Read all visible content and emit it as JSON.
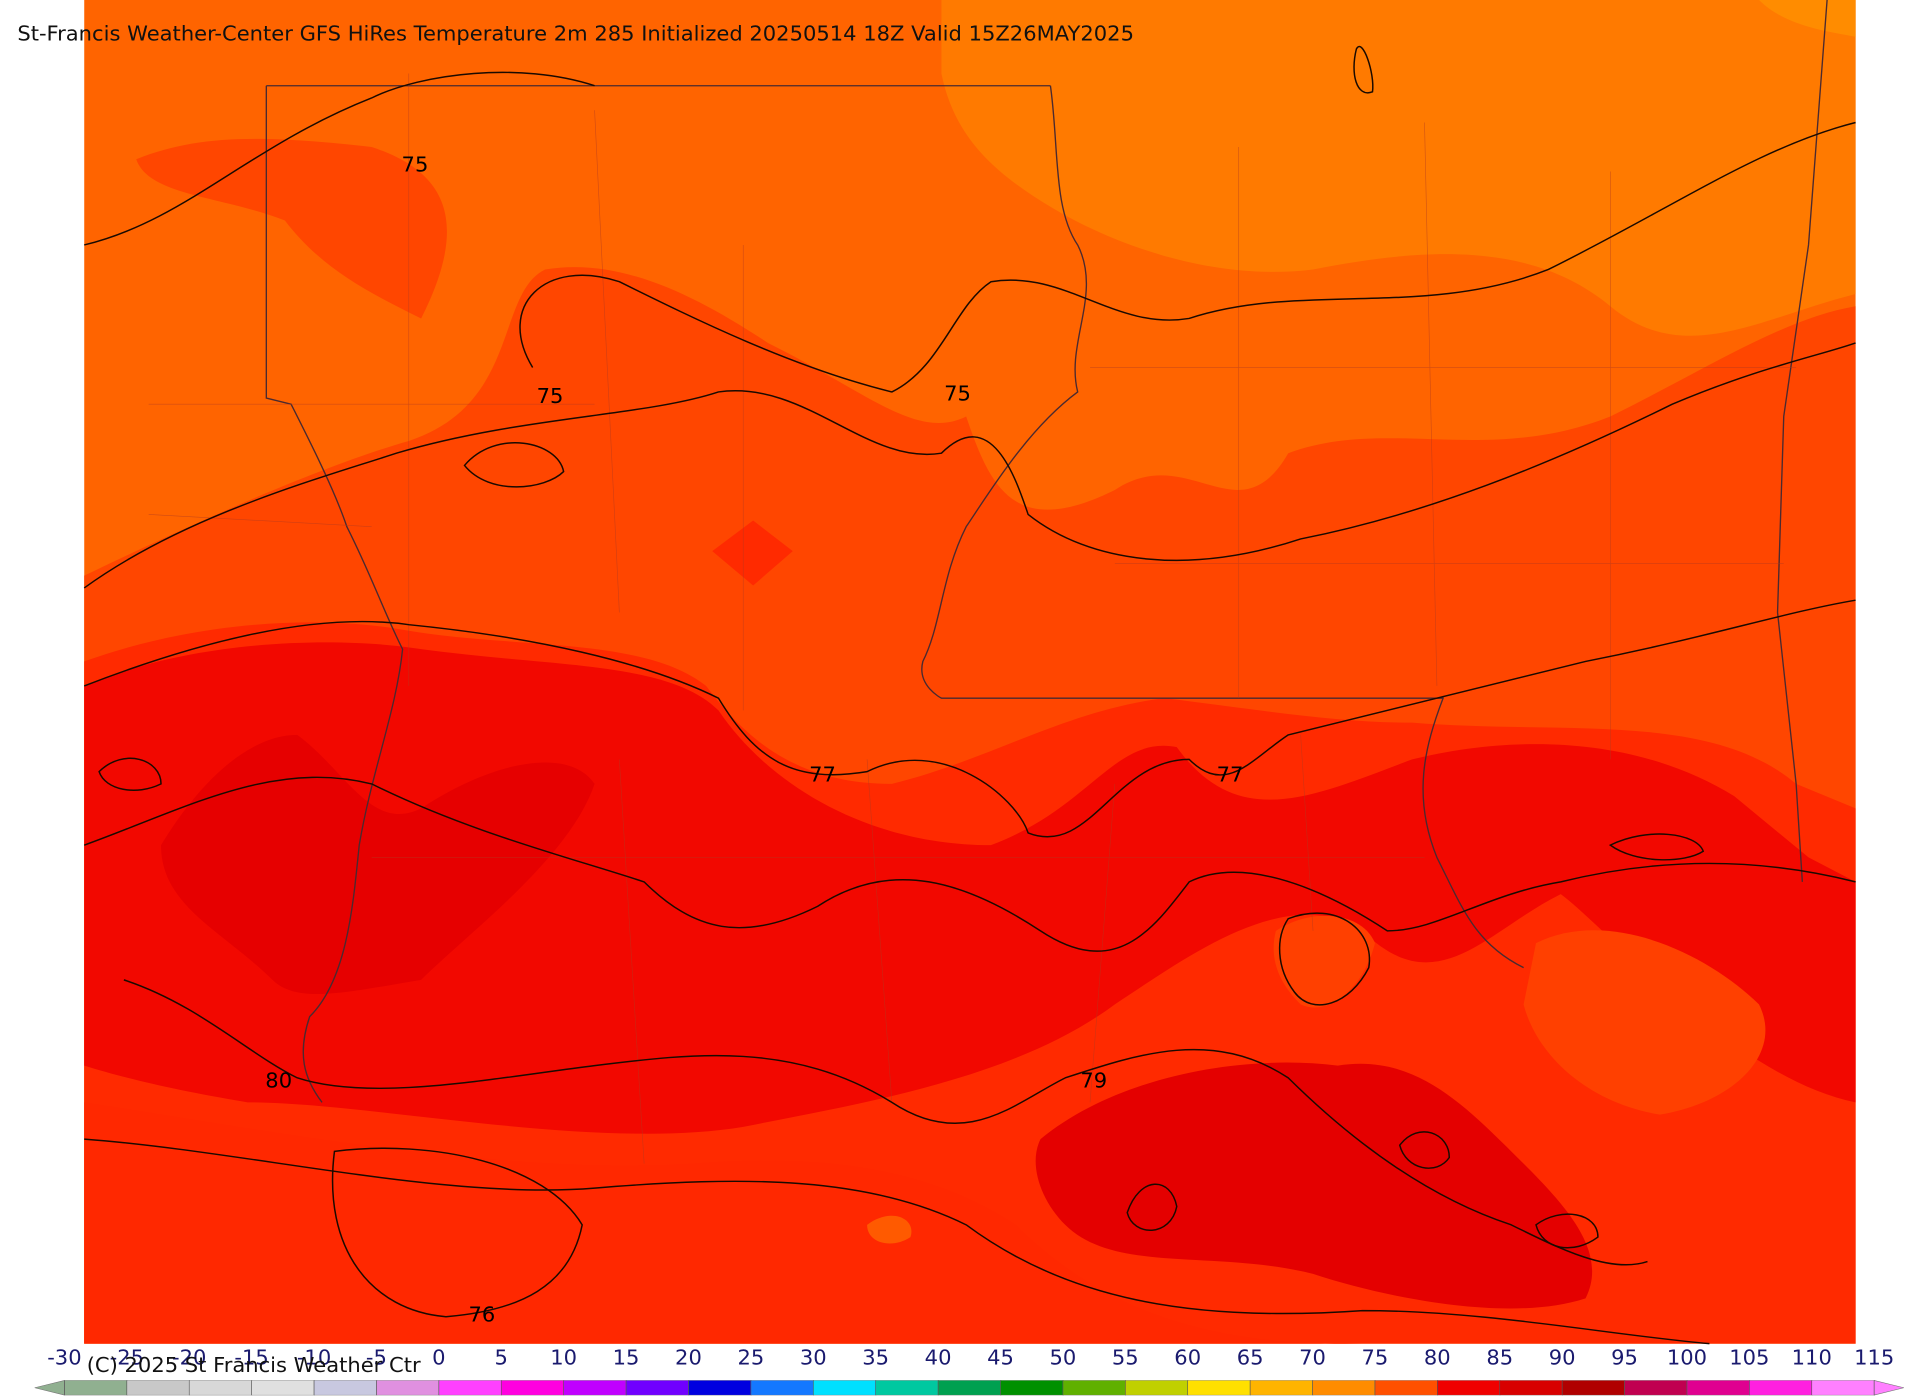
{
  "header": {
    "title": "St-Francis Weather-Center GFS HiRes Temperature 2m  285 Initialized 20250514 18Z Valid 15Z26MAY2025"
  },
  "contour_labels": [
    "75",
    "75",
    "75",
    "77",
    "77",
    "80",
    "79",
    "76"
  ],
  "colorbar": {
    "ticks": [
      -30,
      -25,
      -20,
      -15,
      -10,
      -5,
      0,
      5,
      10,
      15,
      20,
      25,
      30,
      35,
      40,
      45,
      50,
      55,
      60,
      65,
      70,
      75,
      80,
      85,
      90,
      95,
      100,
      105,
      110,
      115
    ],
    "colors": [
      "#90b090",
      "#c8c8c8",
      "#d8d8d8",
      "#e0e0e0",
      "#c8c8e0",
      "#e090e0",
      "#ff40ff",
      "#ff00e0",
      "#c000ff",
      "#7000ff",
      "#0000e0",
      "#1478ff",
      "#00e0ff",
      "#00c8a0",
      "#00a050",
      "#009000",
      "#60b000",
      "#c0d000",
      "#ffe000",
      "#ffb400",
      "#ff8c00",
      "#ff5000",
      "#f00000",
      "#d80000",
      "#b00000",
      "#c00050",
      "#e00090",
      "#ff20e0",
      "#ff80ff"
    ]
  },
  "footer": {
    "copyright": "(C) 2025 St Francis Weather Ctr"
  }
}
